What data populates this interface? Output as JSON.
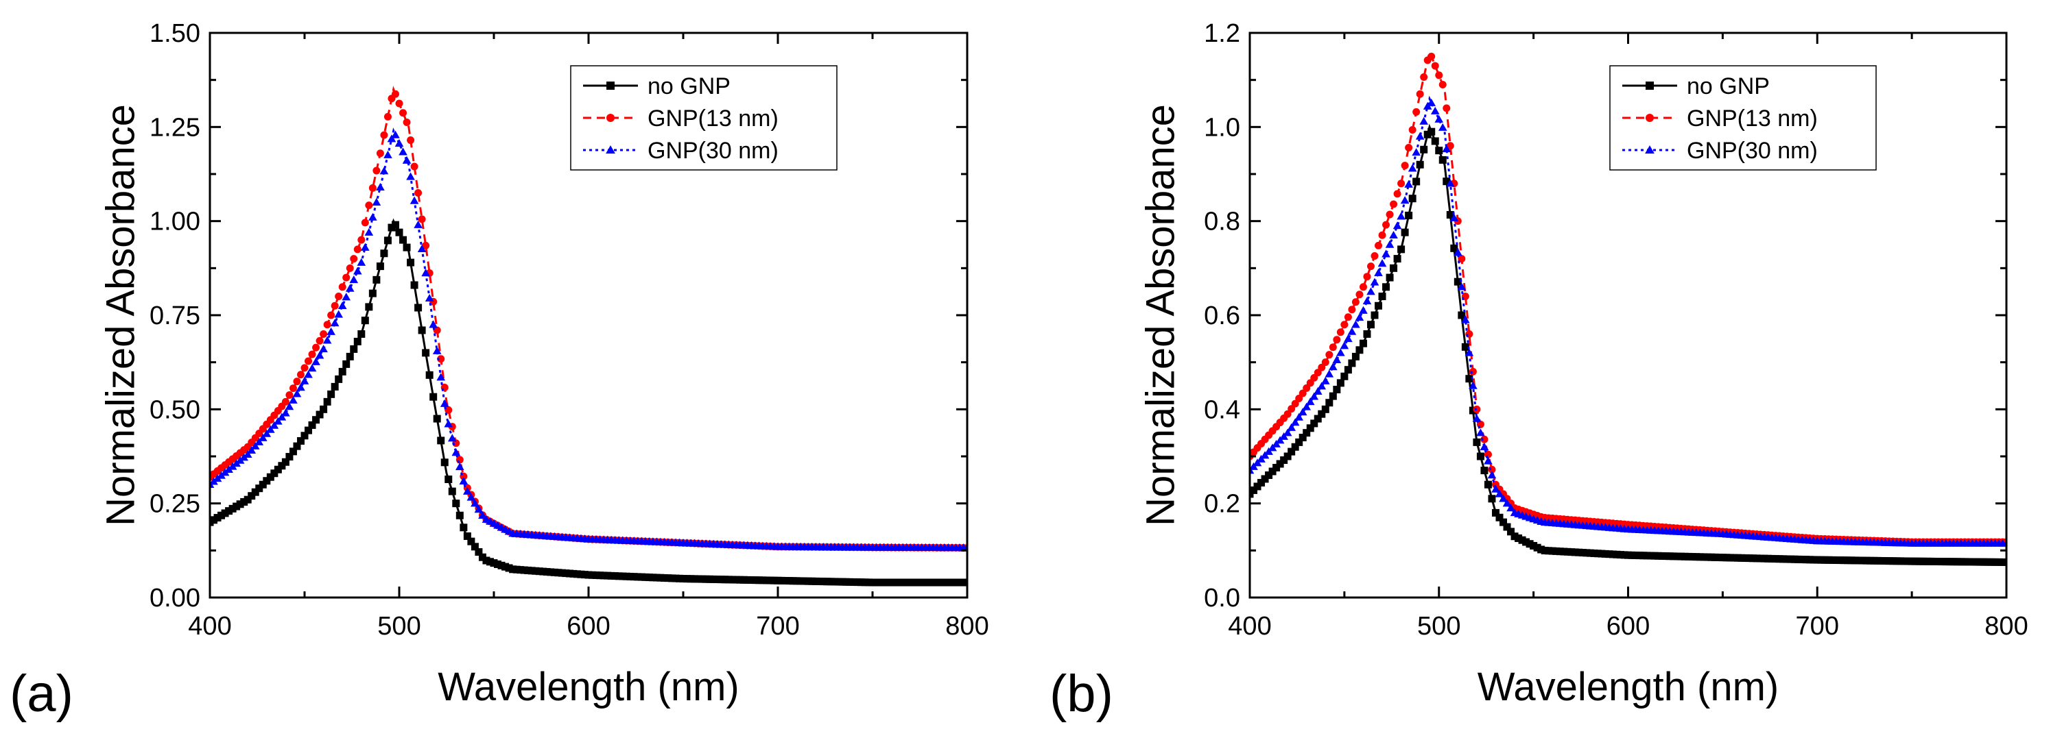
{
  "figure": {
    "panels": [
      {
        "label": "(a)"
      },
      {
        "label": "(b)"
      }
    ]
  },
  "chart_data": [
    {
      "type": "line",
      "panel_label": "(a)",
      "xlabel": "Wavelength (nm)",
      "ylabel": "Normalized Absorbance",
      "xlim": [
        400,
        800
      ],
      "ylim": [
        0,
        1.5
      ],
      "xticks": [
        400,
        500,
        600,
        700,
        800
      ],
      "xtick_labels": [
        "400",
        "500",
        "600",
        "700",
        "800"
      ],
      "yticks": [
        0,
        0.25,
        0.5,
        0.75,
        1.0,
        1.25,
        1.5
      ],
      "ytick_labels": [
        "0.00",
        "0.25",
        "0.50",
        "0.75",
        "1.00",
        "1.25",
        "1.50"
      ],
      "legend_position": "top-right",
      "grid": false,
      "series": [
        {
          "name": "no GNP",
          "color": "#000000",
          "marker": "square",
          "line": "solid",
          "x": [
            400,
            420,
            440,
            460,
            480,
            490,
            497,
            505,
            515,
            525,
            535,
            545,
            560,
            600,
            650,
            700,
            750,
            800
          ],
          "y": [
            0.2,
            0.26,
            0.36,
            0.5,
            0.7,
            0.88,
            1.0,
            0.92,
            0.62,
            0.33,
            0.17,
            0.1,
            0.075,
            0.06,
            0.05,
            0.045,
            0.04,
            0.04
          ]
        },
        {
          "name": "GNP(13 nm)",
          "color": "#ff0000",
          "marker": "circle",
          "line": "dashed",
          "x": [
            400,
            420,
            440,
            460,
            480,
            490,
            497,
            505,
            515,
            525,
            535,
            545,
            560,
            600,
            650,
            700,
            750,
            800
          ],
          "y": [
            0.32,
            0.4,
            0.52,
            0.7,
            0.95,
            1.18,
            1.35,
            1.25,
            0.9,
            0.52,
            0.3,
            0.21,
            0.17,
            0.155,
            0.145,
            0.135,
            0.133,
            0.132
          ]
        },
        {
          "name": "GNP(30 nm)",
          "color": "#0000ff",
          "marker": "triangle",
          "line": "dotted",
          "x": [
            400,
            420,
            440,
            460,
            480,
            490,
            497,
            505,
            515,
            525,
            535,
            545,
            560,
            600,
            650,
            700,
            750,
            800
          ],
          "y": [
            0.3,
            0.38,
            0.49,
            0.66,
            0.89,
            1.09,
            1.24,
            1.15,
            0.83,
            0.48,
            0.29,
            0.21,
            0.17,
            0.155,
            0.145,
            0.135,
            0.133,
            0.132
          ]
        }
      ]
    },
    {
      "type": "line",
      "panel_label": "(b)",
      "xlabel": "Wavelength (nm)",
      "ylabel": "Normalized Absorbance",
      "xlim": [
        400,
        800
      ],
      "ylim": [
        0,
        1.2
      ],
      "xticks": [
        400,
        500,
        600,
        700,
        800
      ],
      "xtick_labels": [
        "400",
        "500",
        "600",
        "700",
        "800"
      ],
      "yticks": [
        0,
        0.2,
        0.4,
        0.6,
        0.8,
        1.0,
        1.2
      ],
      "ytick_labels": [
        "0.0",
        "0.2",
        "0.4",
        "0.6",
        "0.8",
        "1.0",
        "1.2"
      ],
      "legend_position": "top-right",
      "grid": false,
      "series": [
        {
          "name": "no GNP",
          "color": "#000000",
          "marker": "square",
          "line": "solid",
          "x": [
            400,
            420,
            440,
            460,
            480,
            490,
            495,
            503,
            512,
            520,
            530,
            540,
            555,
            600,
            650,
            700,
            750,
            800
          ],
          "y": [
            0.22,
            0.3,
            0.4,
            0.54,
            0.74,
            0.92,
            1.0,
            0.92,
            0.6,
            0.33,
            0.18,
            0.13,
            0.1,
            0.09,
            0.085,
            0.08,
            0.077,
            0.075
          ]
        },
        {
          "name": "GNP(13 nm)",
          "color": "#ff0000",
          "marker": "circle",
          "line": "dashed",
          "x": [
            400,
            420,
            440,
            460,
            480,
            490,
            495,
            503,
            512,
            520,
            530,
            540,
            555,
            600,
            650,
            700,
            750,
            800
          ],
          "y": [
            0.3,
            0.39,
            0.5,
            0.66,
            0.88,
            1.07,
            1.16,
            1.08,
            0.72,
            0.4,
            0.24,
            0.19,
            0.17,
            0.155,
            0.14,
            0.125,
            0.118,
            0.118
          ]
        },
        {
          "name": "GNP(30 nm)",
          "color": "#0000ff",
          "marker": "triangle",
          "line": "dotted",
          "x": [
            400,
            420,
            440,
            460,
            480,
            490,
            495,
            503,
            512,
            520,
            530,
            540,
            555,
            600,
            650,
            700,
            750,
            800
          ],
          "y": [
            0.27,
            0.35,
            0.46,
            0.61,
            0.81,
            0.98,
            1.06,
            0.99,
            0.66,
            0.38,
            0.23,
            0.18,
            0.16,
            0.145,
            0.135,
            0.12,
            0.115,
            0.115
          ]
        }
      ]
    }
  ]
}
